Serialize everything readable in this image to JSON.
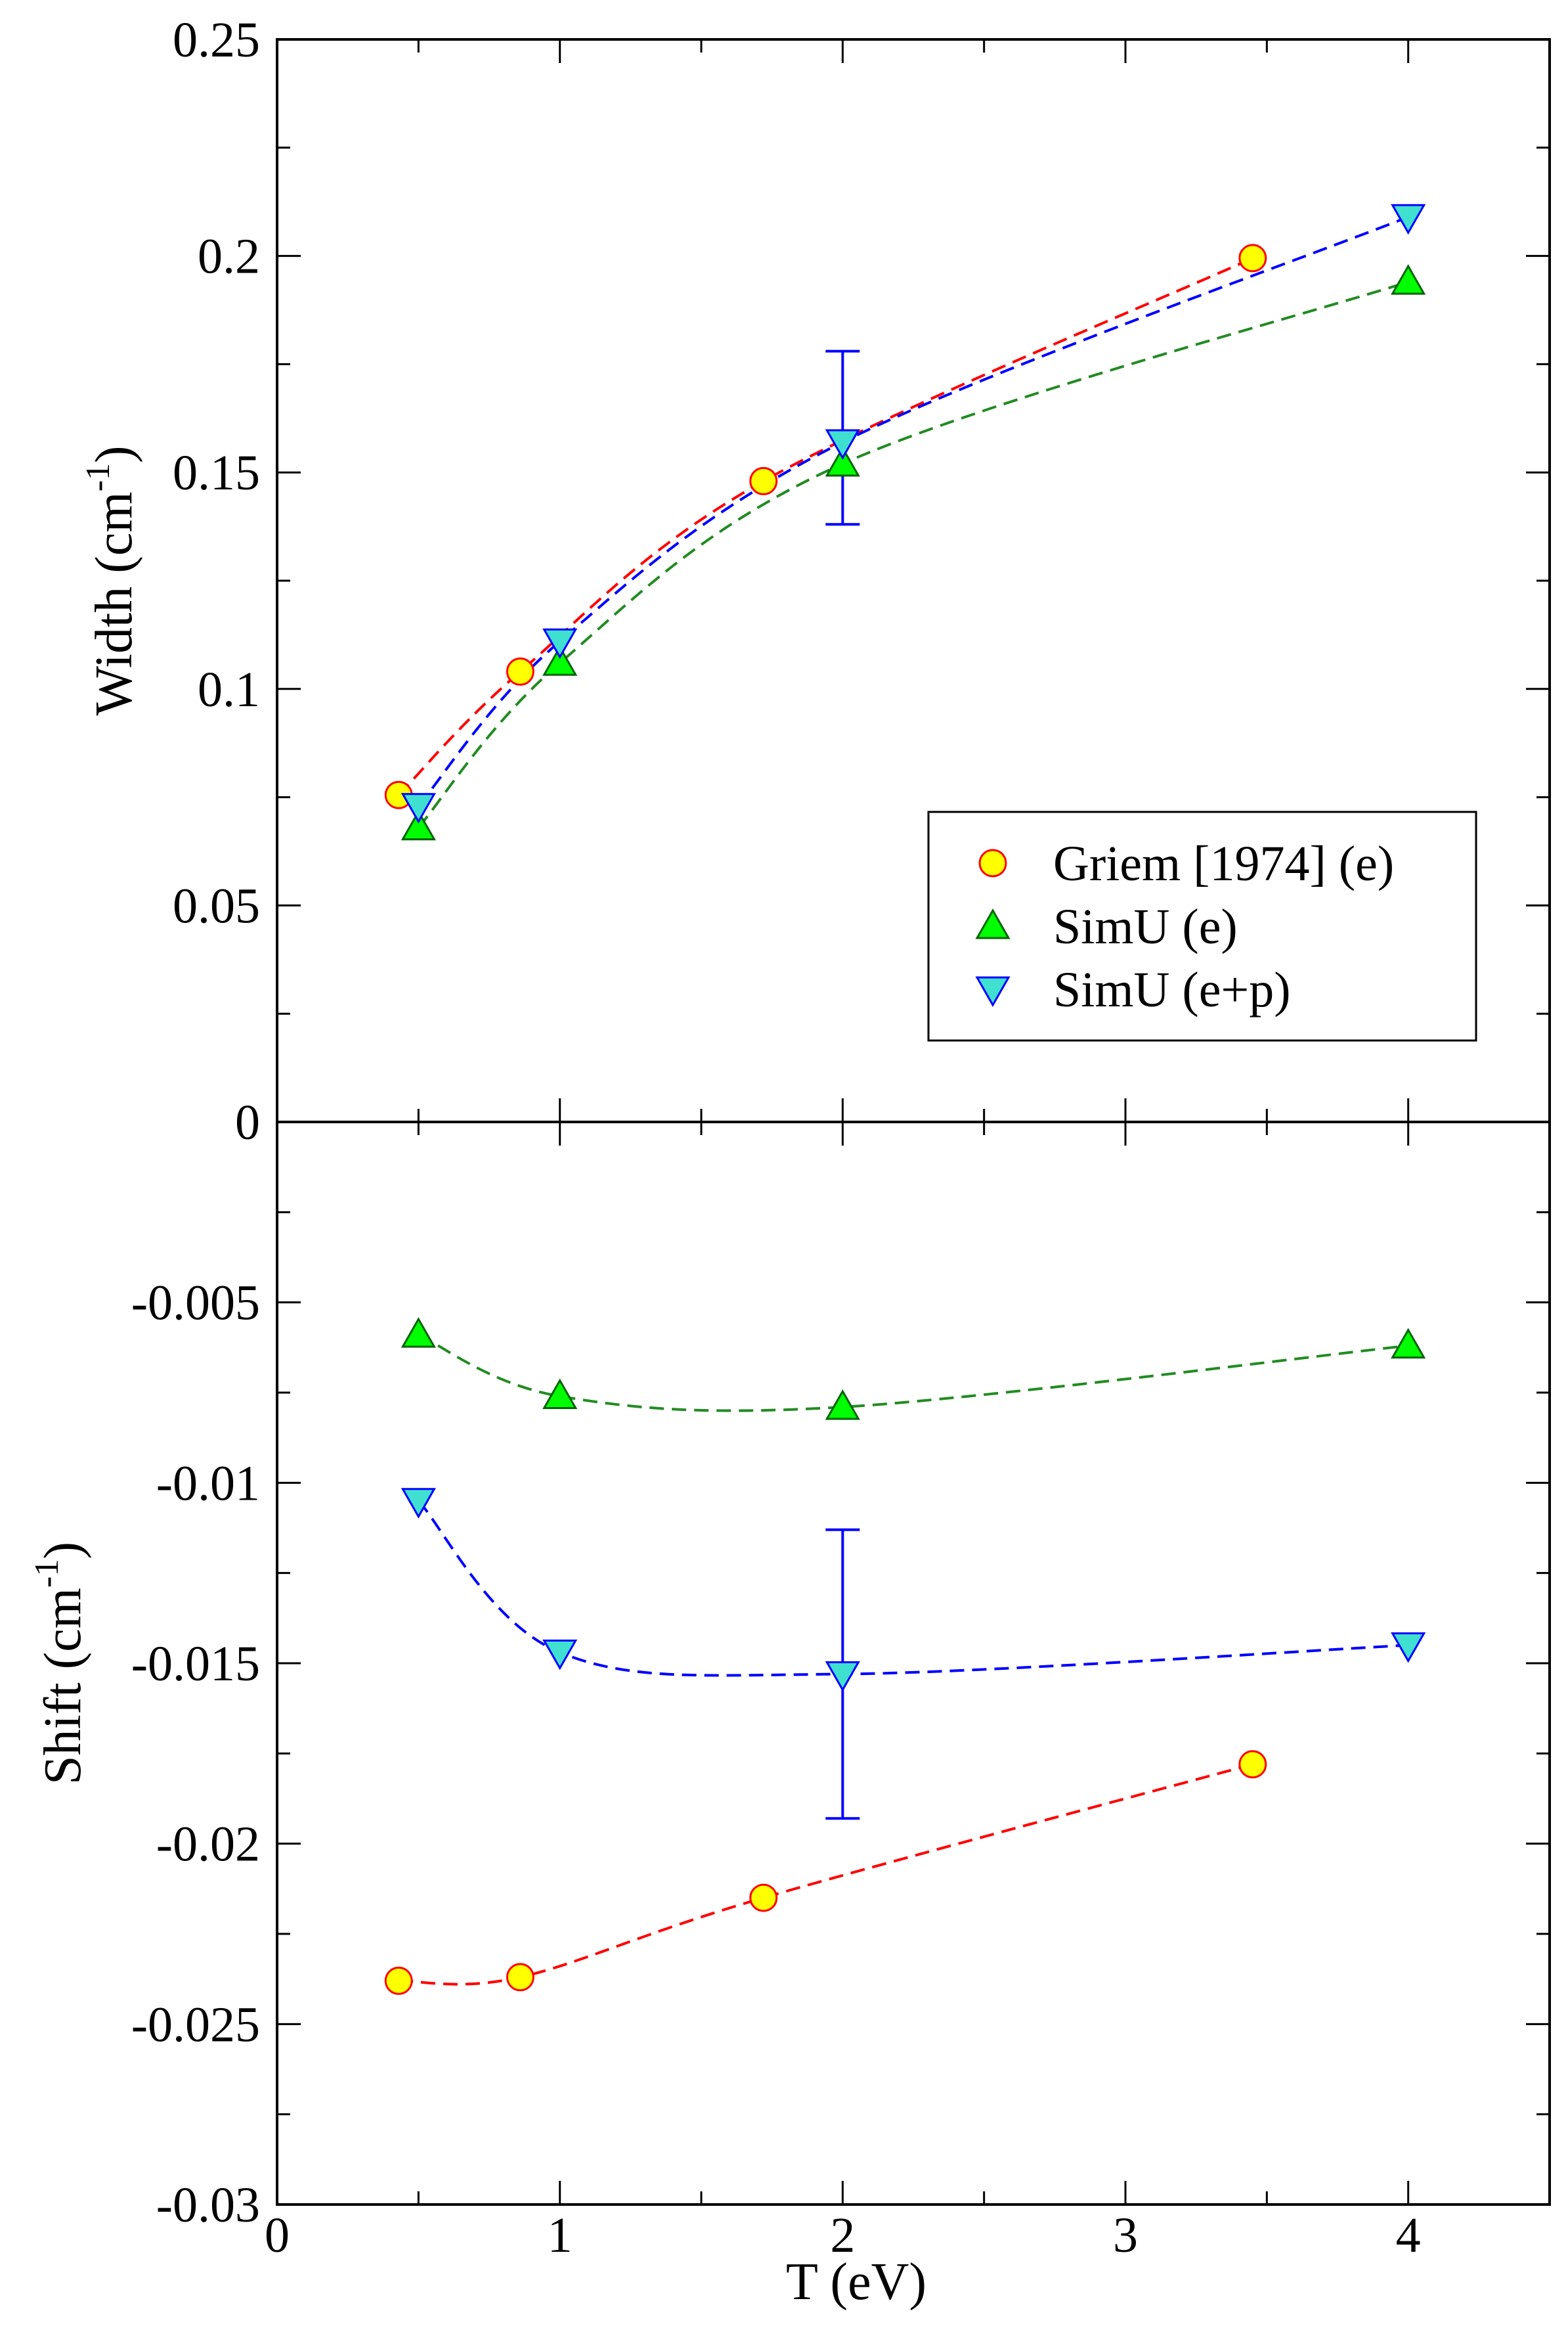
{
  "chart_data": [
    {
      "type": "scatter",
      "panel": "top",
      "ylabel": "Width (cm",
      "ylabel_unit_power": "-1",
      "ylabel_close": ")",
      "xlim": [
        0,
        4.5
      ],
      "ylim": [
        0,
        0.25
      ],
      "y_ticks": [
        0,
        0.05,
        0.1,
        0.15,
        0.2,
        0.25
      ],
      "y_tick_labels": [
        "0",
        "0.05",
        "0.1",
        "0.15",
        "0.2",
        "0.25"
      ],
      "legend_position": "lower-right",
      "series": [
        {
          "name": "Griem [1974] (e)",
          "marker": "circle",
          "color": "#ffff00",
          "edge_color": "#ff0000",
          "line_color": "#ff0000",
          "line_style": "dashed",
          "x": [
            0.43,
            0.86,
            1.72,
            3.45
          ],
          "y": [
            0.0755,
            0.104,
            0.148,
            0.1995
          ]
        },
        {
          "name": "SimU (e)",
          "marker": "triangle-up",
          "color": "#00ff00",
          "edge_color": "#006400",
          "line_color": "#228b22",
          "line_style": "dashed",
          "x": [
            0.5,
            1,
            2,
            4
          ],
          "y": [
            0.068,
            0.106,
            0.152,
            0.194
          ]
        },
        {
          "name": "SimU (e+p)",
          "marker": "triangle-down",
          "color": "#40e0d0",
          "edge_color": "#0000ff",
          "line_color": "#0000ff",
          "line_style": "dashed",
          "x": [
            0.5,
            1,
            2,
            4
          ],
          "y": [
            0.073,
            0.111,
            0.157,
            0.209
          ],
          "error_bar": {
            "x": 2,
            "low": 0.138,
            "high": 0.178
          }
        }
      ]
    },
    {
      "type": "scatter",
      "panel": "bottom",
      "ylabel": "Shift (cm",
      "ylabel_unit_power": "-1",
      "ylabel_close": ")",
      "xlabel": "T (eV)",
      "xlim": [
        0,
        4.5
      ],
      "ylim": [
        -0.03,
        0
      ],
      "x_ticks": [
        0,
        1,
        2,
        3,
        4
      ],
      "x_tick_labels": [
        "0",
        "1",
        "2",
        "3",
        "4"
      ],
      "y_ticks": [
        -0.03,
        -0.025,
        -0.02,
        -0.015,
        -0.01,
        -0.005
      ],
      "y_tick_labels": [
        "-0.03",
        "-0.025",
        "-0.02",
        "-0.015",
        "-0.01",
        "-0.005"
      ],
      "series": [
        {
          "name": "Griem [1974] (e)",
          "marker": "circle",
          "color": "#ffff00",
          "edge_color": "#ff0000",
          "line_color": "#ff0000",
          "line_style": "dashed",
          "x": [
            0.43,
            0.86,
            1.72,
            3.45
          ],
          "y": [
            -0.0238,
            -0.0237,
            -0.0215,
            -0.0178
          ]
        },
        {
          "name": "SimU (e)",
          "marker": "triangle-up",
          "color": "#00ff00",
          "edge_color": "#006400",
          "line_color": "#228b22",
          "line_style": "dashed",
          "x": [
            0.5,
            1,
            2,
            4
          ],
          "y": [
            -0.0059,
            -0.0076,
            -0.0079,
            -0.0062
          ]
        },
        {
          "name": "SimU (e+p)",
          "marker": "triangle-down",
          "color": "#40e0d0",
          "edge_color": "#0000ff",
          "line_color": "#0000ff",
          "line_style": "dashed",
          "x": [
            0.5,
            1,
            2,
            4
          ],
          "y": [
            -0.0105,
            -0.0147,
            -0.0153,
            -0.0145
          ],
          "error_bar": {
            "x": 2,
            "low": -0.0193,
            "high": -0.0113
          }
        }
      ]
    }
  ]
}
